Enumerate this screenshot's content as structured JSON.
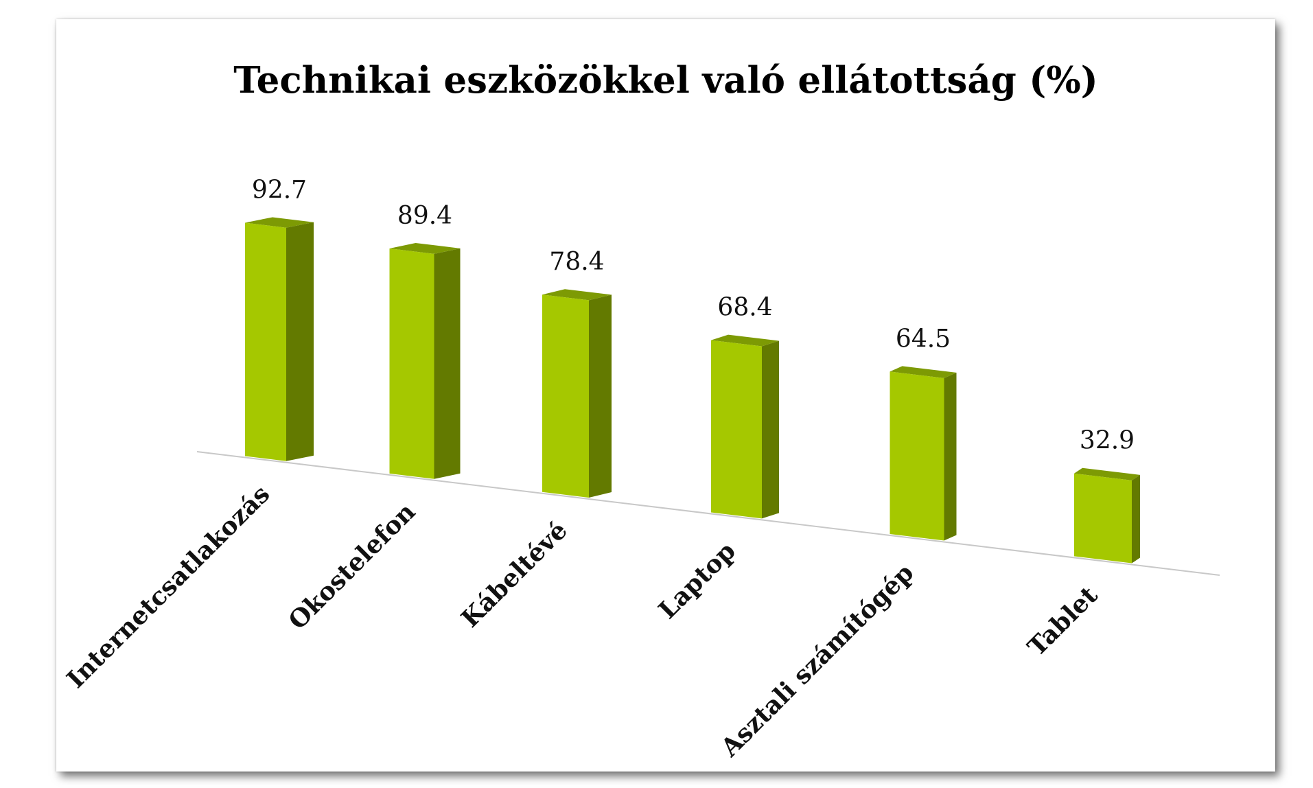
{
  "chart_data": {
    "type": "bar",
    "title": "Technikai eszközökkel való ellátottság (%)",
    "categories": [
      "Internetcsatlakozás",
      "Okostelefon",
      "Kábeltévé",
      "Laptop",
      "Asztali számítógép",
      "Tablet"
    ],
    "values": [
      92.7,
      89.4,
      78.4,
      68.4,
      64.5,
      32.9
    ],
    "data_labels": [
      "92.7",
      "89.4",
      "78.4",
      "68.4",
      "64.5",
      "32.9"
    ],
    "xlabel": "",
    "ylabel": "",
    "ylim": [
      0,
      100
    ],
    "grid": false,
    "legend": "none",
    "style": "3d-perspective",
    "colors": {
      "front": "#a5c800",
      "side": "#637a00",
      "top": "#7d9a04",
      "baseline": "#c8c8c8"
    }
  }
}
